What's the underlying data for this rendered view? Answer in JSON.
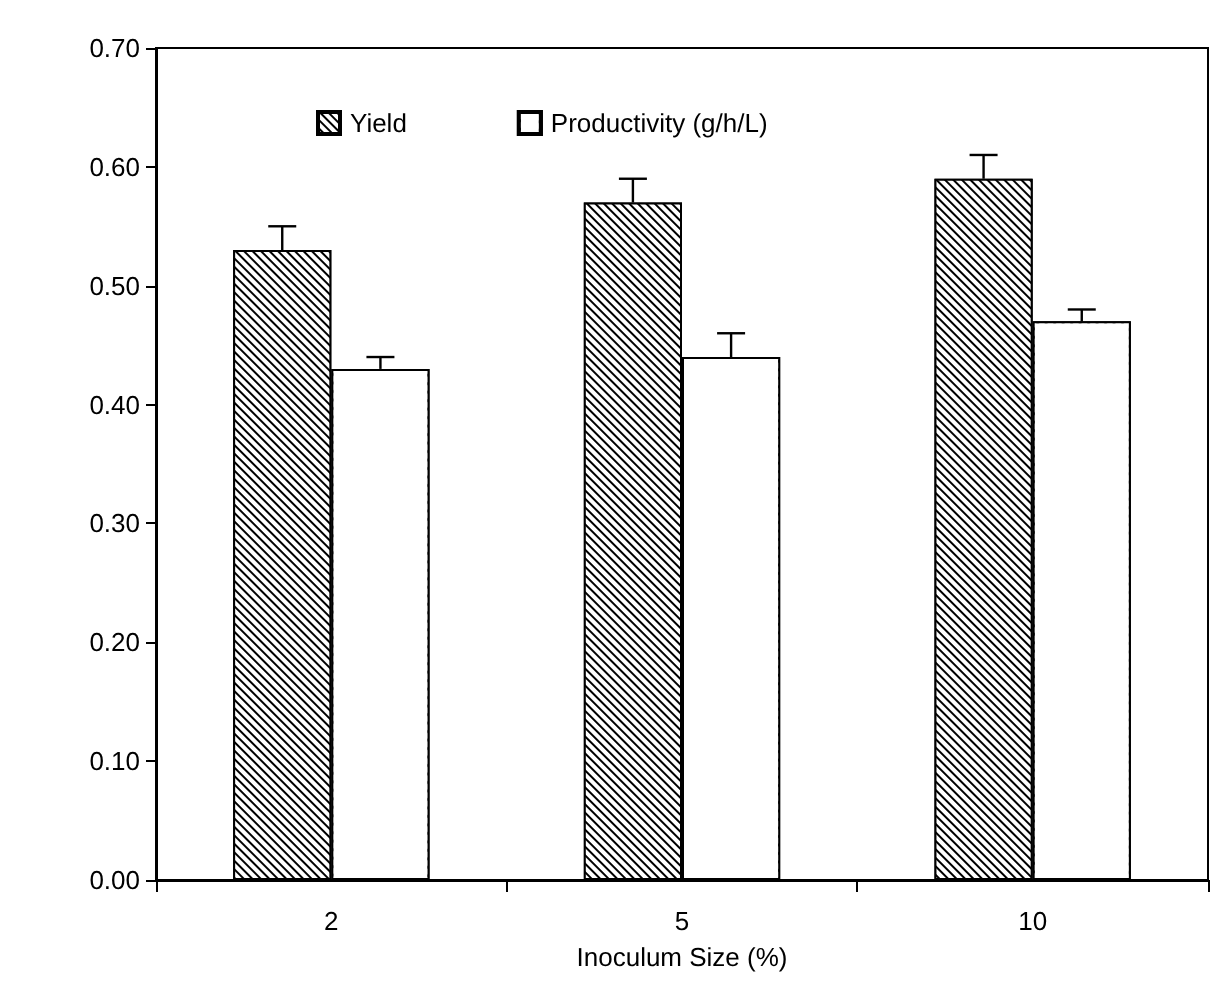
{
  "chart_data": {
    "type": "bar",
    "xlabel": "Inoculum Size (%)",
    "categories": [
      "2",
      "5",
      "10"
    ],
    "series": [
      {
        "name": "Yield",
        "color": "#000000",
        "values": [
          0.53,
          0.57,
          0.59
        ],
        "errors": [
          [
            0.53,
            0.55
          ],
          [
            0.57,
            0.59
          ],
          [
            0.59,
            0.61
          ]
        ]
      },
      {
        "name": "Productivity (g/h/L)",
        "color": "#ffffff",
        "values": [
          0.43,
          0.44,
          0.47
        ],
        "errors": [
          [
            0.43,
            0.44
          ],
          [
            0.44,
            0.46
          ],
          [
            0.47,
            0.48
          ]
        ]
      }
    ],
    "ylim": [
      0,
      0.7
    ],
    "yticks": [
      {
        "value": 0,
        "label": "0.00"
      },
      {
        "value": 0.1,
        "label": "0.10"
      },
      {
        "value": 0.2,
        "label": "0.20"
      },
      {
        "value": 0.3,
        "label": "0.30"
      },
      {
        "value": 0.4,
        "label": "0.40"
      },
      {
        "value": 0.5,
        "label": "0.50"
      },
      {
        "value": 0.6,
        "label": "0.60"
      },
      {
        "value": 0.7,
        "label": "0.70"
      }
    ],
    "grid": false,
    "legend": "top left"
  }
}
